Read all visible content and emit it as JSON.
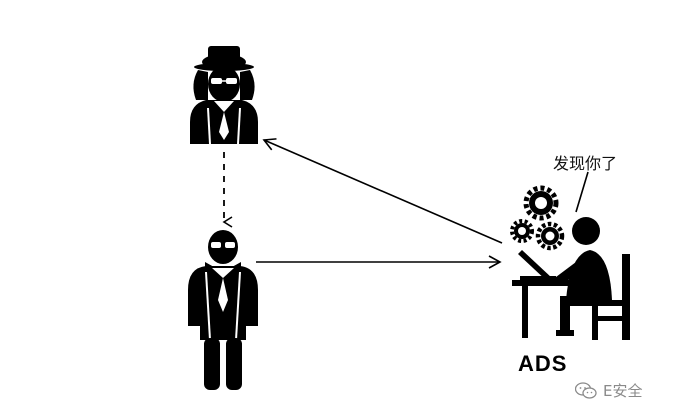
{
  "speech_bubble": {
    "text": "发现你了"
  },
  "ads": {
    "label": "ADS"
  },
  "watermark": {
    "text": "E安全",
    "icon": "wechat-icon"
  },
  "colors": {
    "figure": "#000000",
    "background": "#ffffff",
    "watermark": "#8a8a8a"
  }
}
